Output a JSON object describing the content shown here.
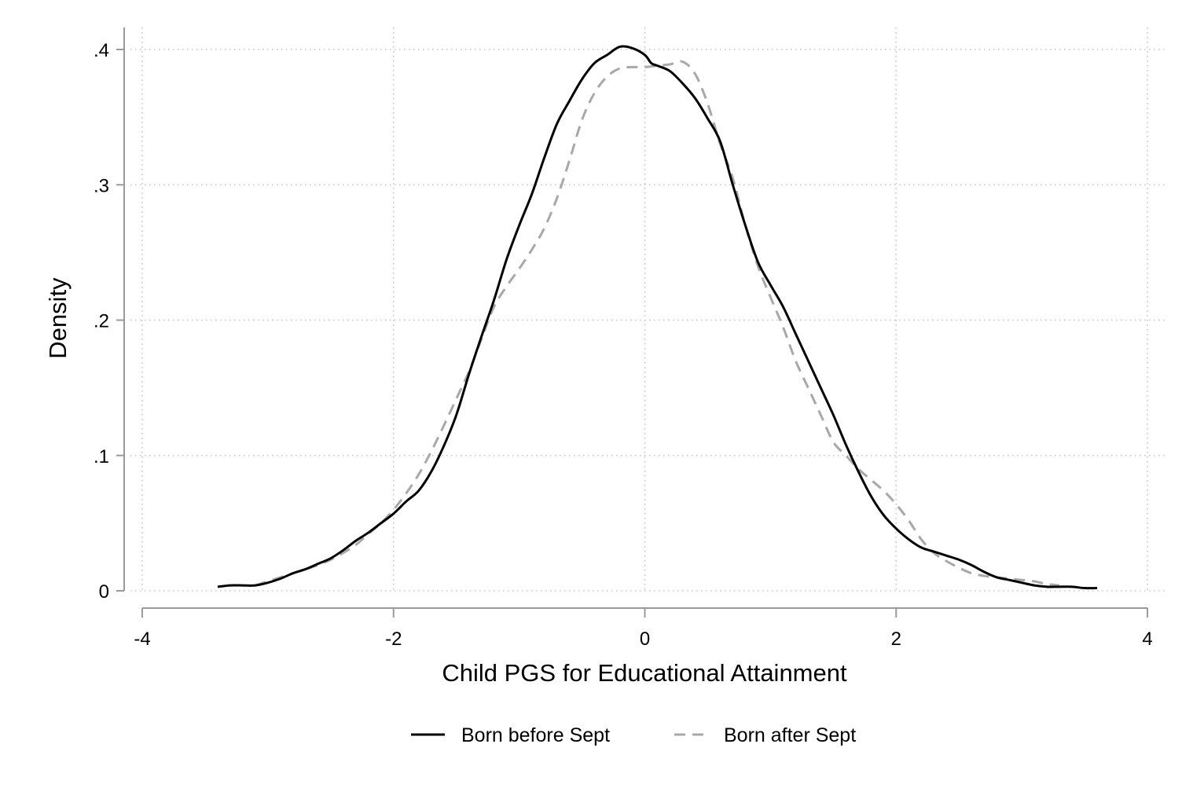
{
  "chart_data": {
    "type": "line",
    "title": "",
    "xlabel": "Child PGS for Educational Attainment",
    "ylabel": "Density",
    "xlim": [
      -4,
      4
    ],
    "ylim": [
      0,
      0.4
    ],
    "x_ticks": [
      {
        "value": -4,
        "label": "-4"
      },
      {
        "value": -2,
        "label": "-2"
      },
      {
        "value": 0,
        "label": "0"
      },
      {
        "value": 2,
        "label": "2"
      },
      {
        "value": 4,
        "label": "4"
      }
    ],
    "y_ticks": [
      {
        "value": 0,
        "label": "0"
      },
      {
        "value": 0.1,
        "label": ".1"
      },
      {
        "value": 0.2,
        "label": ".2"
      },
      {
        "value": 0.3,
        "label": ".3"
      },
      {
        "value": 0.4,
        "label": ".4"
      }
    ],
    "grid": true,
    "legend_position": "bottom",
    "series": [
      {
        "name": "Born before Sept",
        "color": "#000000",
        "style": "solid",
        "x": [
          -3.4,
          -3.3,
          -3.2,
          -3.1,
          -3.0,
          -2.9,
          -2.8,
          -2.7,
          -2.6,
          -2.5,
          -2.4,
          -2.3,
          -2.2,
          -2.1,
          -2.0,
          -1.9,
          -1.8,
          -1.7,
          -1.6,
          -1.5,
          -1.4,
          -1.3,
          -1.2,
          -1.1,
          -1.0,
          -0.9,
          -0.8,
          -0.7,
          -0.6,
          -0.5,
          -0.4,
          -0.3,
          -0.2,
          -0.1,
          0.0,
          0.05,
          0.1,
          0.2,
          0.3,
          0.4,
          0.5,
          0.6,
          0.7,
          0.8,
          0.9,
          1.0,
          1.1,
          1.2,
          1.3,
          1.4,
          1.5,
          1.6,
          1.7,
          1.8,
          1.9,
          2.0,
          2.1,
          2.2,
          2.3,
          2.4,
          2.5,
          2.6,
          2.7,
          2.8,
          2.9,
          3.0,
          3.1,
          3.2,
          3.3,
          3.4,
          3.5,
          3.6
        ],
        "y": [
          0.003,
          0.004,
          0.004,
          0.004,
          0.006,
          0.009,
          0.013,
          0.016,
          0.02,
          0.024,
          0.03,
          0.037,
          0.043,
          0.05,
          0.057,
          0.066,
          0.074,
          0.088,
          0.107,
          0.13,
          0.16,
          0.188,
          0.215,
          0.245,
          0.27,
          0.293,
          0.32,
          0.345,
          0.362,
          0.378,
          0.39,
          0.396,
          0.402,
          0.401,
          0.396,
          0.39,
          0.388,
          0.384,
          0.375,
          0.364,
          0.349,
          0.332,
          0.3,
          0.27,
          0.243,
          0.226,
          0.21,
          0.19,
          0.17,
          0.15,
          0.13,
          0.108,
          0.088,
          0.07,
          0.056,
          0.046,
          0.038,
          0.032,
          0.029,
          0.026,
          0.023,
          0.019,
          0.014,
          0.01,
          0.008,
          0.006,
          0.004,
          0.003,
          0.003,
          0.003,
          0.002,
          0.002
        ]
      },
      {
        "name": "Born after Sept",
        "color": "#a8a8a8",
        "style": "dashed",
        "x": [
          -3.1,
          -3.0,
          -2.9,
          -2.8,
          -2.7,
          -2.6,
          -2.5,
          -2.4,
          -2.3,
          -2.2,
          -2.1,
          -2.0,
          -1.9,
          -1.8,
          -1.7,
          -1.6,
          -1.5,
          -1.4,
          -1.3,
          -1.2,
          -1.1,
          -1.0,
          -0.9,
          -0.8,
          -0.7,
          -0.6,
          -0.5,
          -0.4,
          -0.3,
          -0.2,
          -0.1,
          0.0,
          0.1,
          0.2,
          0.3,
          0.4,
          0.5,
          0.6,
          0.7,
          0.8,
          0.9,
          1.0,
          1.1,
          1.2,
          1.3,
          1.4,
          1.5,
          1.6,
          1.7,
          1.8,
          1.9,
          2.0,
          2.1,
          2.2,
          2.3,
          2.4,
          2.5,
          2.6,
          2.7,
          2.8,
          2.9,
          3.0,
          3.1,
          3.2,
          3.3
        ],
        "y": [
          0.004,
          0.007,
          0.01,
          0.013,
          0.016,
          0.019,
          0.023,
          0.028,
          0.034,
          0.042,
          0.05,
          0.06,
          0.072,
          0.086,
          0.103,
          0.122,
          0.142,
          0.162,
          0.186,
          0.21,
          0.225,
          0.238,
          0.252,
          0.268,
          0.29,
          0.318,
          0.348,
          0.368,
          0.38,
          0.386,
          0.387,
          0.387,
          0.388,
          0.389,
          0.391,
          0.382,
          0.36,
          0.33,
          0.305,
          0.27,
          0.24,
          0.217,
          0.195,
          0.17,
          0.15,
          0.13,
          0.11,
          0.1,
          0.09,
          0.082,
          0.074,
          0.064,
          0.052,
          0.038,
          0.028,
          0.022,
          0.017,
          0.013,
          0.011,
          0.01,
          0.009,
          0.008,
          0.007,
          0.005,
          0.004
        ]
      }
    ]
  }
}
